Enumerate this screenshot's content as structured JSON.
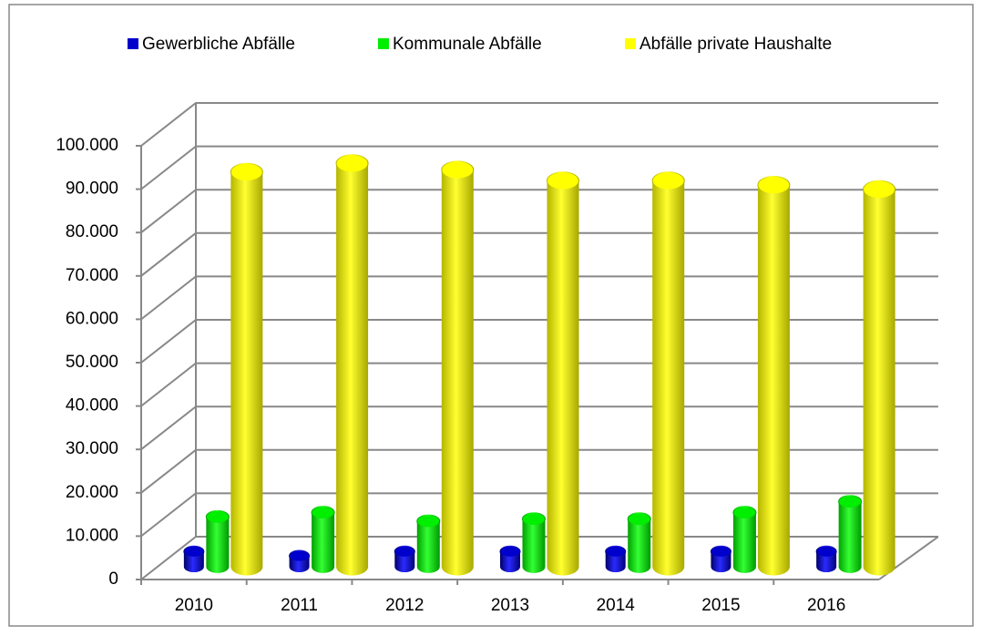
{
  "chart_data": {
    "type": "bar3d",
    "categories": [
      "2010",
      "2011",
      "2012",
      "2013",
      "2014",
      "2015",
      "2016"
    ],
    "series": [
      {
        "name": "Gewerbliche Abfälle",
        "color": "#0000cc",
        "values": [
          3500,
          2500,
          3500,
          3500,
          3500,
          3500,
          3500
        ]
      },
      {
        "name": "Kommunale Abfälle",
        "color": "#00ee00",
        "values": [
          11500,
          12500,
          10500,
          11000,
          11000,
          12500,
          15000
        ]
      },
      {
        "name": "Abfälle private Haushalte",
        "color": "#ffff00",
        "values": [
          91000,
          93000,
          91500,
          89000,
          89000,
          88000,
          87000
        ]
      }
    ],
    "ylim": [
      0,
      100000
    ],
    "yticks": [
      0,
      {
        "value": 10000,
        "label": "10.000"
      },
      {
        "value": 20000,
        "label": "20.000"
      },
      {
        "value": 30000,
        "label": "30.000"
      },
      {
        "value": 40000,
        "label": "40.000"
      },
      {
        "value": 50000,
        "label": "50.000"
      },
      {
        "value": 60000,
        "label": "60.000"
      },
      {
        "value": 70000,
        "label": "70.000"
      },
      {
        "value": 80000,
        "label": "80.000"
      },
      {
        "value": 90000,
        "label": "90.000"
      },
      {
        "value": 100000,
        "label": "100.000"
      }
    ],
    "grid": true,
    "legend": "top"
  }
}
